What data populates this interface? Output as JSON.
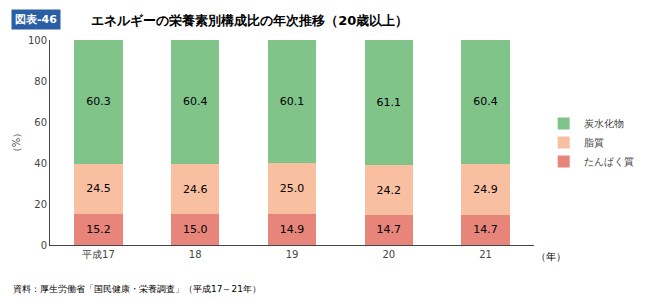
{
  "chart_data": {
    "type": "bar",
    "stacked": true,
    "title": "エネルギーの栄養素別構成比の年次推移（20歳以上）",
    "annotations": [
      "図表-46",
      "資料：厚生労働省「国民健康・栄養調査」（平成17～21年）"
    ],
    "xlabel": "（年）",
    "ylabel": "（%）",
    "categories": [
      "平成17",
      "18",
      "19",
      "20",
      "21"
    ],
    "series": [
      {
        "name": "たんぱく質",
        "color": "#e8857a",
        "values": [
          15.2,
          15.0,
          14.9,
          14.7,
          14.7
        ],
        "value_labels": [
          "15.2",
          "15.0",
          "14.9",
          "14.7",
          "14.7"
        ]
      },
      {
        "name": "脂質",
        "color": "#f8bfa0",
        "values": [
          24.5,
          24.6,
          25.0,
          24.2,
          24.9
        ],
        "value_labels": [
          "24.5",
          "24.6",
          "25.0",
          "24.2",
          "24.9"
        ]
      },
      {
        "name": "炭水化物",
        "color": "#80c48a",
        "values": [
          60.3,
          60.4,
          60.1,
          61.1,
          60.4
        ]
      }
    ],
    "ylim": [
      0,
      100
    ],
    "yticks": [
      0,
      20,
      40,
      60,
      80,
      100
    ],
    "data_labels": true,
    "legend": "right",
    "grid": false
  }
}
